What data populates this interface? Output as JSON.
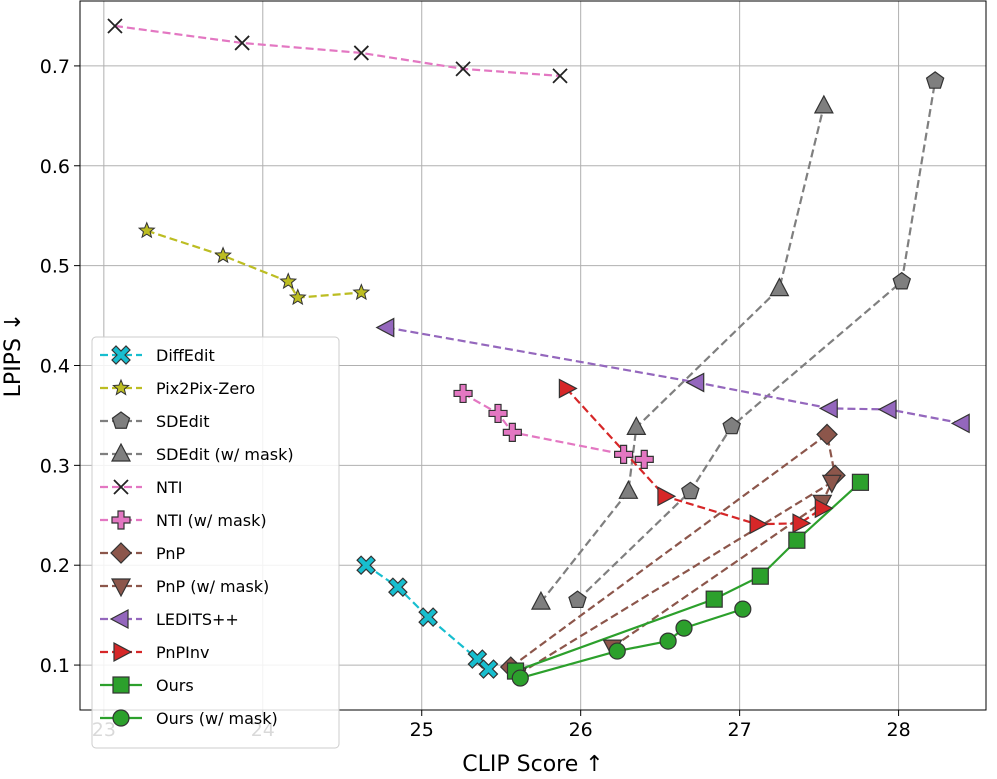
{
  "chart_data": {
    "type": "line",
    "xlabel": "CLIP Score ↑",
    "ylabel": "LPIPS ↓",
    "xlim": [
      22.85,
      28.55
    ],
    "ylim": [
      0.055,
      0.765
    ],
    "xticks": [
      23,
      24,
      25,
      26,
      27,
      28
    ],
    "yticks": [
      0.1,
      0.2,
      0.3,
      0.4,
      0.5,
      0.6,
      0.7
    ],
    "grid": true,
    "legend_position": "lower-left",
    "series": [
      {
        "name": "DiffEdit",
        "color": "#17becf",
        "marker": "X",
        "linestyle": "dashed",
        "points": [
          [
            24.65,
            0.2
          ],
          [
            24.85,
            0.178
          ],
          [
            25.04,
            0.148
          ],
          [
            25.35,
            0.106
          ],
          [
            25.42,
            0.096
          ]
        ]
      },
      {
        "name": "Pix2Pix-Zero",
        "color": "#bcbd22",
        "marker": "star",
        "linestyle": "dashed",
        "points": [
          [
            23.27,
            0.535
          ],
          [
            23.75,
            0.51
          ],
          [
            24.16,
            0.484
          ],
          [
            24.22,
            0.468
          ],
          [
            24.62,
            0.473
          ]
        ]
      },
      {
        "name": "SDEdit",
        "color": "#7f7f7f",
        "marker": "pentagon",
        "linestyle": "dashed",
        "points": [
          [
            25.98,
            0.165
          ],
          [
            26.69,
            0.274
          ],
          [
            26.95,
            0.339
          ],
          [
            28.02,
            0.484
          ],
          [
            28.23,
            0.685
          ]
        ]
      },
      {
        "name": "SDEdit (w/ mask)",
        "color": "#7f7f7f",
        "marker": "triangle-up",
        "linestyle": "dashed",
        "points": [
          [
            25.75,
            0.163
          ],
          [
            26.3,
            0.274
          ],
          [
            26.35,
            0.338
          ],
          [
            27.25,
            0.477
          ],
          [
            27.53,
            0.66
          ]
        ]
      },
      {
        "name": "NTI",
        "color": "#e377c2",
        "marker": "x",
        "linestyle": "dashed",
        "points": [
          [
            23.07,
            0.74
          ],
          [
            23.87,
            0.723
          ],
          [
            24.62,
            0.713
          ],
          [
            25.26,
            0.697
          ],
          [
            25.87,
            0.69
          ]
        ]
      },
      {
        "name": "NTI (w/ mask)",
        "color": "#e377c2",
        "marker": "plus",
        "linestyle": "dashed",
        "points": [
          [
            25.26,
            0.372
          ],
          [
            25.48,
            0.352
          ],
          [
            25.57,
            0.333
          ],
          [
            26.27,
            0.311
          ],
          [
            26.4,
            0.306
          ]
        ]
      },
      {
        "name": "PnP",
        "color": "#8c564b",
        "marker": "diamond",
        "linestyle": "dashed",
        "points": [
          [
            25.56,
            0.098
          ],
          [
            27.55,
            0.331
          ],
          [
            27.6,
            0.29
          ]
        ]
      },
      {
        "name": "PnP (w/ mask)",
        "color": "#8c564b",
        "marker": "triangle-down",
        "linestyle": "dashed",
        "points": [
          [
            26.2,
            0.118
          ],
          [
            27.52,
            0.263
          ],
          [
            27.58,
            0.283
          ],
          [
            25.6,
            0.09
          ]
        ]
      },
      {
        "name": "LEDITS++",
        "color": "#9467bd",
        "marker": "triangle-left",
        "linestyle": "dashed",
        "points": [
          [
            24.78,
            0.438
          ],
          [
            26.73,
            0.383
          ],
          [
            27.57,
            0.357
          ],
          [
            27.94,
            0.356
          ],
          [
            28.4,
            0.342
          ]
        ]
      },
      {
        "name": "PnPInv",
        "color": "#d62728",
        "marker": "triangle-right",
        "linestyle": "dashed",
        "points": [
          [
            25.91,
            0.377
          ],
          [
            26.53,
            0.269
          ],
          [
            27.11,
            0.241
          ],
          [
            27.38,
            0.242
          ],
          [
            27.52,
            0.257
          ]
        ]
      },
      {
        "name": "Ours",
        "color": "#2ca02c",
        "marker": "square",
        "linestyle": "solid",
        "points": [
          [
            25.59,
            0.094
          ],
          [
            26.84,
            0.166
          ],
          [
            27.13,
            0.189
          ],
          [
            27.36,
            0.225
          ],
          [
            27.76,
            0.283
          ]
        ]
      },
      {
        "name": "Ours (w/ mask)",
        "color": "#2ca02c",
        "marker": "circle",
        "linestyle": "solid",
        "points": [
          [
            25.62,
            0.087
          ],
          [
            26.23,
            0.114
          ],
          [
            26.55,
            0.124
          ],
          [
            26.65,
            0.137
          ],
          [
            27.02,
            0.156
          ]
        ]
      }
    ]
  }
}
